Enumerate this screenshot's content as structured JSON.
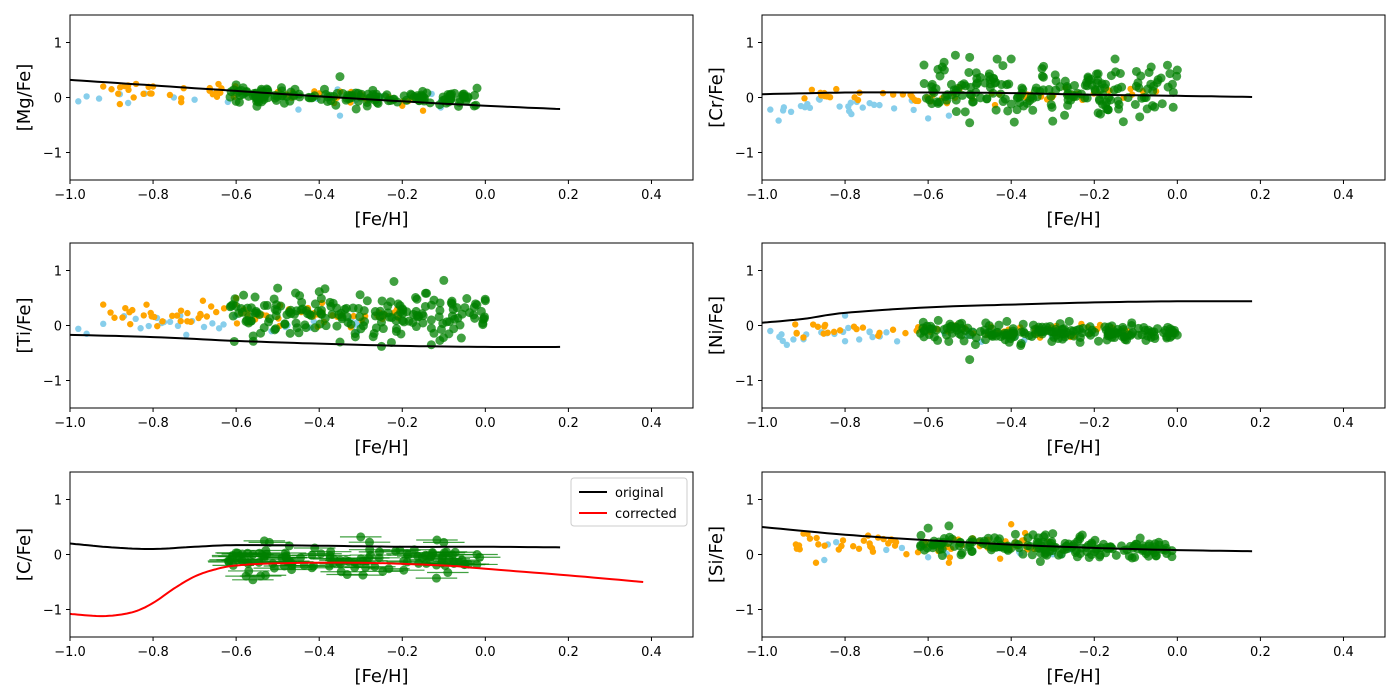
{
  "chart_data": {
    "type": "scatter",
    "grid": false,
    "colors": {
      "cat_a": "#87ceeb",
      "cat_b": "#ffa500",
      "cat_c": "#008000",
      "original": "#000000",
      "corrected": "#ff0000"
    },
    "x_ticks": [
      "−1.0",
      "−0.8",
      "−0.6",
      "−0.4",
      "−0.2",
      "0.0",
      "0.2",
      "0.4"
    ],
    "y_ticks": [
      "−1",
      "0",
      "1"
    ],
    "xlim": [
      -1.0,
      0.5
    ],
    "ylim": [
      -1.5,
      1.5
    ],
    "panels": [
      {
        "id": "mg",
        "xlabel": "[Fe/H]",
        "ylabel": "[Mg/Fe]",
        "original": [
          [
            -1.0,
            0.32
          ],
          [
            -0.8,
            0.22
          ],
          [
            -0.6,
            0.12
          ],
          [
            -0.4,
            0.02
          ],
          [
            -0.2,
            -0.07
          ],
          [
            0.0,
            -0.15
          ],
          [
            0.18,
            -0.21
          ]
        ],
        "scatter": {
          "cat_a": {
            "x": [
              -0.5,
              -0.1
            ],
            "mu": 0.0,
            "sd": 0.07,
            "n": 14,
            "extra": [
              [
                -0.98,
                -0.07
              ],
              [
                -0.96,
                0.02
              ],
              [
                -0.93,
                -0.02
              ],
              [
                -0.88,
                0.06
              ],
              [
                -0.86,
                -0.1
              ],
              [
                -0.82,
                0.07
              ],
              [
                -0.75,
                0.0
              ],
              [
                -0.7,
                -0.04
              ],
              [
                -0.62,
                -0.08
              ],
              [
                -0.58,
                0.05
              ],
              [
                -0.45,
                -0.22
              ],
              [
                -0.35,
                -0.33
              ]
            ]
          },
          "cat_b": {
            "x": [
              -0.92,
              -0.15
            ],
            "mu": 0.04,
            "sd": 0.08,
            "n": 55,
            "extra": [
              [
                -0.92,
                0.2
              ],
              [
                -0.9,
                0.15
              ],
              [
                -0.86,
                0.22
              ],
              [
                -0.8,
                0.2
              ],
              [
                -0.88,
                -0.12
              ],
              [
                -0.15,
                -0.24
              ],
              [
                -0.2,
                -0.15
              ]
            ]
          },
          "cat_c": {
            "x": [
              -0.62,
              -0.02
            ],
            "mu": 0.02,
            "sd": 0.07,
            "n": 150,
            "extra": [
              [
                -0.35,
                0.38
              ],
              [
                -0.36,
                -0.14
              ],
              [
                -0.55,
                -0.16
              ],
              [
                -0.6,
                0.23
              ],
              [
                -0.02,
                0.17
              ],
              [
                -0.05,
                0.02
              ]
            ]
          }
        }
      },
      {
        "id": "cr",
        "xlabel": "[Fe/H]",
        "ylabel": "[Cr/Fe]",
        "original": [
          [
            -1.0,
            0.06
          ],
          [
            -0.8,
            0.09
          ],
          [
            -0.6,
            0.09
          ],
          [
            -0.4,
            0.08
          ],
          [
            -0.2,
            0.05
          ],
          [
            0.0,
            0.03
          ],
          [
            0.18,
            0.01
          ]
        ],
        "scatter": {
          "cat_a": {
            "x": [
              -0.98,
              -0.55
            ],
            "mu": -0.12,
            "sd": 0.1,
            "n": 22,
            "extra": [
              [
                -0.98,
                -0.22
              ],
              [
                -0.96,
                -0.42
              ],
              [
                -0.93,
                -0.26
              ],
              [
                -0.6,
                -0.38
              ],
              [
                -0.55,
                -0.33
              ]
            ]
          },
          "cat_b": {
            "x": [
              -0.9,
              -0.05
            ],
            "mu": 0.02,
            "sd": 0.08,
            "n": 60,
            "extra": [
              [
                -0.88,
                0.14
              ],
              [
                -0.85,
                0.08
              ]
            ]
          },
          "cat_c": {
            "x": [
              -0.62,
              0.0
            ],
            "mu": 0.1,
            "sd": 0.22,
            "n": 190,
            "extra": [
              [
                -0.5,
                0.73
              ],
              [
                -0.4,
                0.7
              ],
              [
                -0.15,
                0.7
              ],
              [
                -0.61,
                0.59
              ],
              [
                -0.5,
                -0.46
              ],
              [
                -0.3,
                -0.43
              ],
              [
                -0.13,
                -0.44
              ],
              [
                0.0,
                0.5
              ],
              [
                -0.42,
                0.58
              ]
            ]
          }
        }
      },
      {
        "id": "ti",
        "xlabel": "[Fe/H]",
        "ylabel": "[Ti/Fe]",
        "original": [
          [
            -1.0,
            -0.17
          ],
          [
            -0.8,
            -0.21
          ],
          [
            -0.6,
            -0.28
          ],
          [
            -0.4,
            -0.33
          ],
          [
            -0.2,
            -0.37
          ],
          [
            0.0,
            -0.39
          ],
          [
            0.18,
            -0.39
          ]
        ],
        "scatter": {
          "cat_a": {
            "x": [
              -0.85,
              -0.3
            ],
            "mu": 0.05,
            "sd": 0.07,
            "n": 25,
            "extra": [
              [
                -0.98,
                -0.06
              ],
              [
                -0.96,
                -0.15
              ],
              [
                -0.92,
                0.03
              ],
              [
                -0.87,
                0.17
              ],
              [
                -0.72,
                -0.17
              ],
              [
                -0.83,
                -0.05
              ]
            ]
          },
          "cat_b": {
            "x": [
              -0.92,
              -0.2
            ],
            "mu": 0.18,
            "sd": 0.09,
            "n": 70,
            "extra": [
              [
                -0.92,
                0.38
              ],
              [
                -0.85,
                0.28
              ],
              [
                -0.68,
                0.45
              ],
              [
                -0.6,
                0.5
              ]
            ]
          },
          "cat_c": {
            "x": [
              -0.62,
              0.0
            ],
            "mu": 0.18,
            "sd": 0.2,
            "n": 190,
            "extra": [
              [
                -0.22,
                0.8
              ],
              [
                -0.1,
                0.82
              ],
              [
                -0.5,
                0.68
              ],
              [
                -0.25,
                -0.38
              ],
              [
                -0.13,
                -0.35
              ],
              [
                0.0,
                0.45
              ],
              [
                -0.35,
                -0.3
              ]
            ]
          }
        }
      },
      {
        "id": "ni",
        "xlabel": "[Fe/H]",
        "ylabel": "[Ni/Fe]",
        "original": [
          [
            -1.0,
            0.05
          ],
          [
            -0.9,
            0.12
          ],
          [
            -0.8,
            0.23
          ],
          [
            -0.6,
            0.33
          ],
          [
            -0.4,
            0.38
          ],
          [
            -0.2,
            0.42
          ],
          [
            0.0,
            0.44
          ],
          [
            0.18,
            0.44
          ]
        ],
        "scatter": {
          "cat_a": {
            "x": [
              -0.98,
              -0.3
            ],
            "mu": -0.18,
            "sd": 0.07,
            "n": 30,
            "extra": [
              [
                -0.98,
                -0.1
              ],
              [
                -0.95,
                -0.28
              ],
              [
                -0.9,
                -0.25
              ],
              [
                -0.8,
                0.18
              ]
            ]
          },
          "cat_b": {
            "x": [
              -0.92,
              -0.1
            ],
            "mu": -0.1,
            "sd": 0.07,
            "n": 55,
            "extra": [
              [
                -0.92,
                0.02
              ],
              [
                -0.85,
                -0.02
              ]
            ]
          },
          "cat_c": {
            "x": [
              -0.62,
              0.0
            ],
            "mu": -0.12,
            "sd": 0.09,
            "n": 190,
            "extra": [
              [
                -0.5,
                -0.62
              ],
              [
                -0.58,
                -0.08
              ]
            ]
          }
        }
      },
      {
        "id": "c",
        "xlabel": "[Fe/H]",
        "ylabel": "[C/Fe]",
        "legend": {
          "position": "top-right",
          "original_label": "original",
          "corrected_label": "corrected"
        },
        "original": [
          [
            -1.0,
            0.2
          ],
          [
            -0.9,
            0.13
          ],
          [
            -0.8,
            0.1
          ],
          [
            -0.7,
            0.14
          ],
          [
            -0.6,
            0.17
          ],
          [
            -0.4,
            0.16
          ],
          [
            -0.2,
            0.14
          ],
          [
            0.0,
            0.14
          ],
          [
            0.18,
            0.13
          ]
        ],
        "corrected": [
          [
            -1.0,
            -1.08
          ],
          [
            -0.92,
            -1.12
          ],
          [
            -0.85,
            -1.05
          ],
          [
            -0.8,
            -0.88
          ],
          [
            -0.75,
            -0.62
          ],
          [
            -0.7,
            -0.4
          ],
          [
            -0.65,
            -0.27
          ],
          [
            -0.6,
            -0.2
          ],
          [
            -0.5,
            -0.16
          ],
          [
            -0.3,
            -0.15
          ],
          [
            -0.1,
            -0.2
          ],
          [
            0.0,
            -0.26
          ],
          [
            0.2,
            -0.38
          ],
          [
            0.38,
            -0.5
          ]
        ],
        "scatter": {
          "cat_c": {
            "x": [
              -0.62,
              -0.0
            ],
            "mu": -0.1,
            "sd": 0.14,
            "n": 120,
            "xerr": 0.05,
            "extra": [
              [
                -0.52,
                0.22
              ],
              [
                -0.3,
                0.32
              ],
              [
                -0.1,
                0.22
              ],
              [
                -0.02,
                0.0
              ],
              [
                -0.6,
                0.03
              ]
            ]
          }
        }
      },
      {
        "id": "si",
        "xlabel": "[Fe/H]",
        "ylabel": "[Si/Fe]",
        "original": [
          [
            -1.0,
            0.5
          ],
          [
            -0.8,
            0.36
          ],
          [
            -0.6,
            0.26
          ],
          [
            -0.4,
            0.18
          ],
          [
            -0.2,
            0.12
          ],
          [
            0.0,
            0.08
          ],
          [
            0.18,
            0.06
          ]
        ],
        "scatter": {
          "cat_a": {
            "x": [
              -0.85,
              -0.2
            ],
            "mu": 0.1,
            "sd": 0.06,
            "n": 16,
            "extra": [
              [
                -0.85,
                -0.1
              ],
              [
                -0.6,
                -0.05
              ]
            ]
          },
          "cat_b": {
            "x": [
              -0.92,
              -0.3
            ],
            "mu": 0.15,
            "sd": 0.1,
            "n": 70,
            "extra": [
              [
                -0.9,
                0.38
              ],
              [
                -0.87,
                -0.15
              ],
              [
                -0.4,
                0.55
              ],
              [
                -0.55,
                -0.15
              ]
            ]
          },
          "cat_c": {
            "x": [
              -0.62,
              0.0
            ],
            "mu": 0.15,
            "sd": 0.09,
            "n": 180,
            "extra": [
              [
                -0.6,
                0.48
              ],
              [
                -0.55,
                0.52
              ],
              [
                -0.3,
                0.38
              ]
            ]
          }
        }
      }
    ]
  }
}
